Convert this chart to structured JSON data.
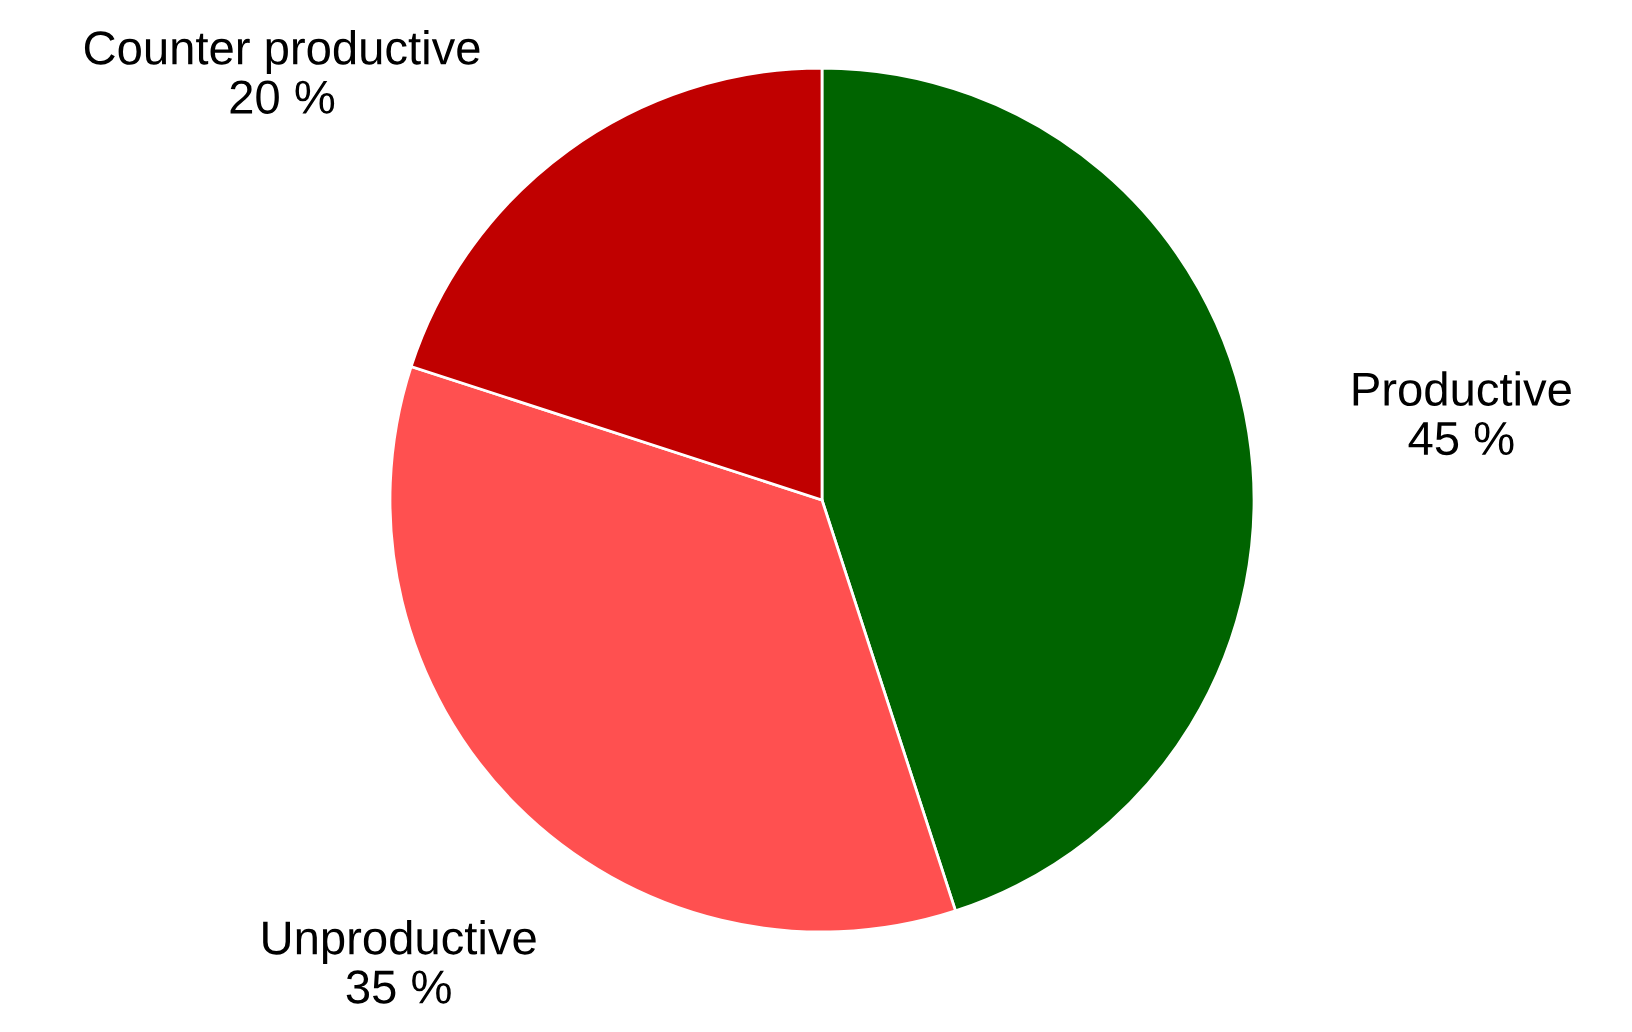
{
  "chart_data": {
    "type": "pie",
    "categories": [
      "Productive",
      "Unproductive",
      "Counter productive"
    ],
    "values": [
      45,
      35,
      20
    ],
    "value_labels": [
      "45 %",
      "35 %",
      "20 %"
    ],
    "colors": [
      "#006400",
      "#ff5050",
      "#c00000"
    ]
  }
}
